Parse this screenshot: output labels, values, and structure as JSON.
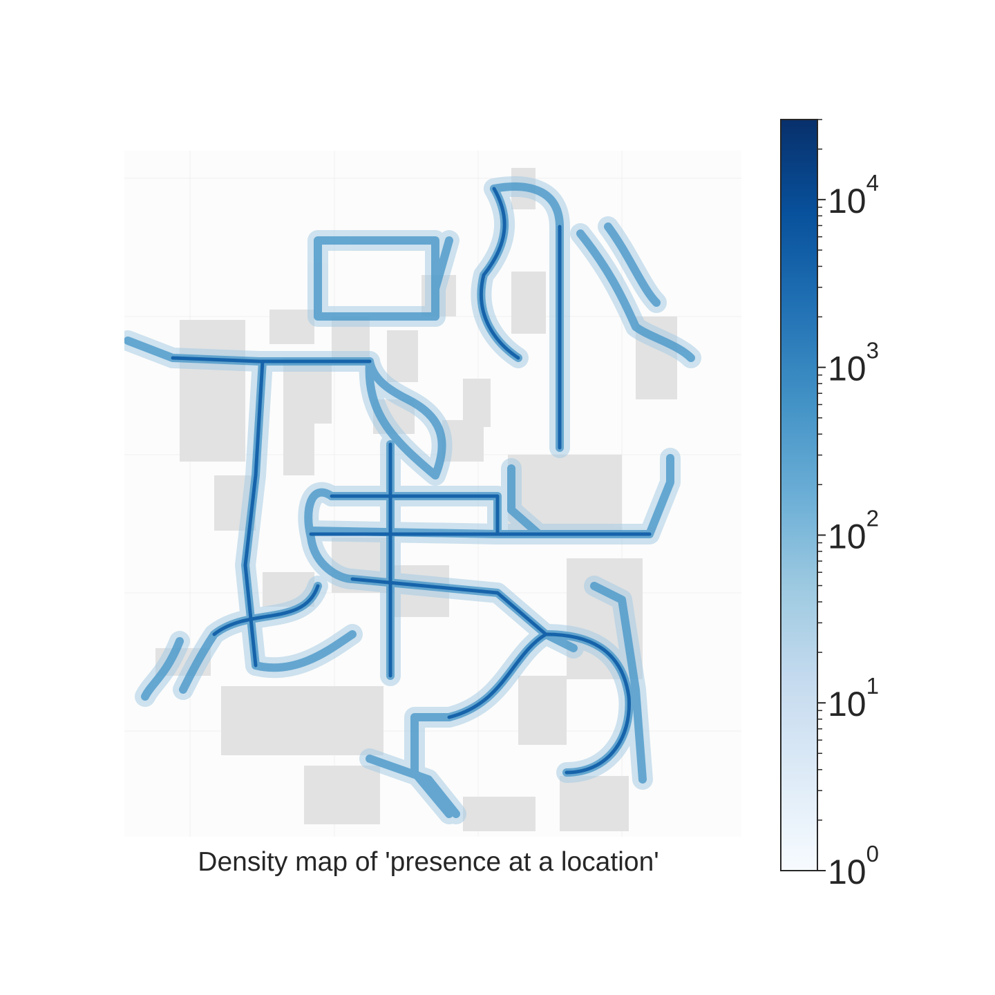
{
  "figure": {
    "caption": "Density map of 'presence at a location'"
  },
  "chart_data": {
    "type": "heatmap",
    "title": "Density map of 'presence at a location'",
    "xlabel": "",
    "ylabel": "",
    "grid": true,
    "colormap": "Blues",
    "colors": {
      "low": "#f7fbff",
      "mid": "#6baed6",
      "high": "#08306b",
      "building": "#e2e2e2",
      "background": "#fcfcfc",
      "text": "#262626"
    },
    "colorbar": {
      "scale": "log",
      "range": [
        1,
        30000
      ],
      "ticks": [
        {
          "value": 1,
          "base": "10",
          "exponent": "0"
        },
        {
          "value": 10,
          "base": "10",
          "exponent": "1"
        },
        {
          "value": 100,
          "base": "10",
          "exponent": "2"
        },
        {
          "value": 1000,
          "base": "10",
          "exponent": "3"
        },
        {
          "value": 10000,
          "base": "10",
          "exponent": "4"
        }
      ]
    }
  }
}
